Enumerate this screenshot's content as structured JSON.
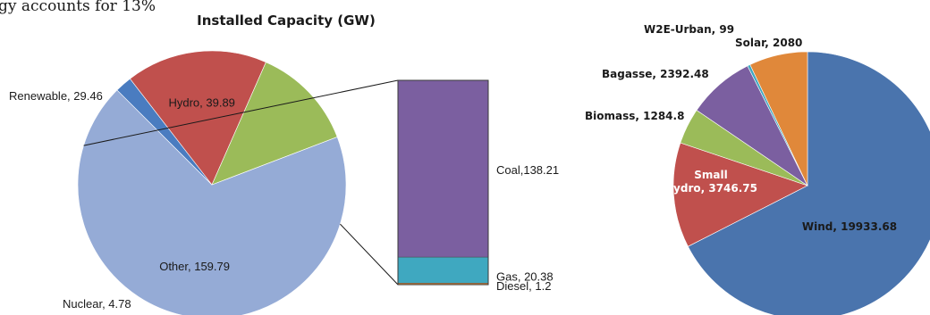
{
  "page": {
    "top_text": "gy accounts for 13%"
  },
  "chart_data": [
    {
      "type": "pie",
      "title": "Installed Capacity (GW)",
      "slices": [
        {
          "label": "Other, 159.79",
          "name": "Other",
          "value": 159.79,
          "color": "#95abd6"
        },
        {
          "label": "Nuclear,  4.78",
          "name": "Nuclear",
          "value": 4.78,
          "color": "#4a7cc0"
        },
        {
          "label": "Hydro, 39.89",
          "name": "Hydro",
          "value": 39.89,
          "color": "#c0504d"
        },
        {
          "label": "Renewable, 29.46",
          "name": "Renewable",
          "value": 29.46,
          "color": "#9bbb59"
        }
      ],
      "breakdown_of": "Other",
      "breakdown": [
        {
          "label": "Coal,138.21",
          "name": "Coal",
          "value": 138.21,
          "color": "#7b5fa0"
        },
        {
          "label": "Gas, 20.38",
          "name": "Gas",
          "value": 20.38,
          "color": "#3fa8c0"
        },
        {
          "label": "Diesel, 1.2",
          "name": "Diesel",
          "value": 1.2,
          "color": "#e08a3a"
        }
      ]
    },
    {
      "type": "pie",
      "title": "",
      "slices": [
        {
          "label": "Wind, 19933.68",
          "name": "Wind",
          "value": 19933.68,
          "color": "#4a74ad"
        },
        {
          "label": "Small\nHydro, 3746.75",
          "name": "Small Hydro",
          "value": 3746.75,
          "color": "#c0504d"
        },
        {
          "label": "Biomass, 1284.8",
          "name": "Biomass",
          "value": 1284.8,
          "color": "#9bbb59"
        },
        {
          "label": "Bagasse, 2392.48",
          "name": "Bagasse",
          "value": 2392.48,
          "color": "#7b5fa0"
        },
        {
          "label": "W2E-Urban, 99",
          "name": "W2E-Urban",
          "value": 99,
          "color": "#3fa8c0"
        },
        {
          "label": "Solar, 2080",
          "name": "Solar",
          "value": 2080,
          "color": "#e0883a"
        }
      ]
    }
  ]
}
